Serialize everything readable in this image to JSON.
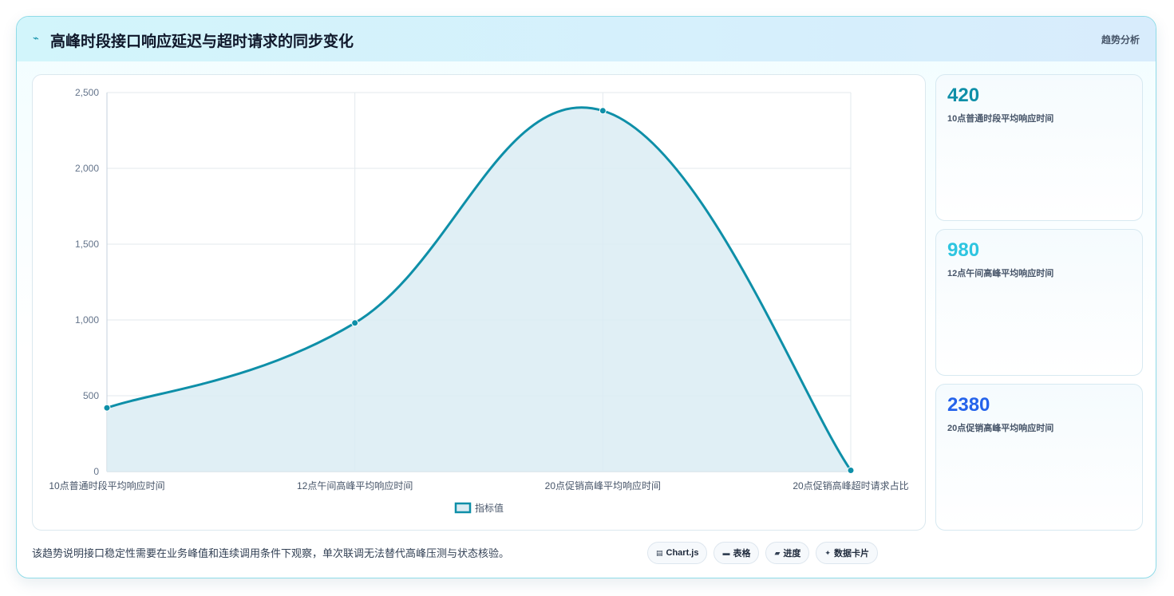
{
  "header": {
    "title": "高峰时段接口响应延迟与超时请求的同步变化",
    "tag": "趋势分析",
    "icon": "trend-icon"
  },
  "chart_data": {
    "type": "line",
    "categories": [
      "10点普通时段平均响应时间",
      "12点午间高峰平均响应时间",
      "20点促销高峰平均响应时间",
      "20点促销高峰超时请求占比"
    ],
    "series": [
      {
        "name": "指标值",
        "values": [
          420,
          980,
          2380,
          8
        ]
      }
    ],
    "ylim": [
      0,
      2500
    ],
    "yticks": [
      0,
      500,
      1000,
      1500,
      2000,
      2500
    ],
    "ytick_labels": [
      "0",
      "500",
      "1,000",
      "1,500",
      "2,000",
      "2,500"
    ],
    "fill": true,
    "grid": true,
    "legend_position": "bottom",
    "colors": {
      "line": "#0e8fa8",
      "fill": "#dbecf3"
    }
  },
  "stats": [
    {
      "value": "420",
      "label": "10点普通时段平均响应时间",
      "color": "#0e8fa8"
    },
    {
      "value": "980",
      "label": "12点午间高峰平均响应时间",
      "color": "#2ec5e0"
    },
    {
      "value": "2380",
      "label": "20点促销高峰平均响应时间",
      "color": "#2563eb"
    }
  ],
  "footer": {
    "note": "该趋势说明接口稳定性需要在业务峰值和连续调用条件下观察，单次联调无法替代高峰压测与状态核验。",
    "chips": [
      {
        "icon": "chart-icon",
        "glyph": "▤",
        "label": "Chart.js"
      },
      {
        "icon": "table-icon",
        "glyph": "▬",
        "label": "表格"
      },
      {
        "icon": "progress-icon",
        "glyph": "▰",
        "label": "进度"
      },
      {
        "icon": "sparkle-icon",
        "glyph": "✦",
        "label": "数据卡片"
      }
    ]
  }
}
